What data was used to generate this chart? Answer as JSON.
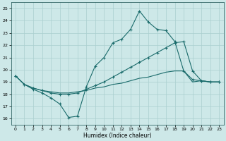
{
  "xlabel": "Humidex (Indice chaleur)",
  "xlim": [
    -0.5,
    23.5
  ],
  "ylim": [
    15.5,
    25.5
  ],
  "yticks": [
    16,
    17,
    18,
    19,
    20,
    21,
    22,
    23,
    24,
    25
  ],
  "xticks": [
    0,
    1,
    2,
    3,
    4,
    5,
    6,
    7,
    8,
    9,
    10,
    11,
    12,
    13,
    14,
    15,
    16,
    17,
    18,
    19,
    20,
    21,
    22,
    23
  ],
  "background_color": "#cde8e8",
  "grid_color": "#aacfcf",
  "line_color": "#1a6b6b",
  "line1_x": [
    0,
    1,
    2,
    3,
    4,
    5,
    6,
    7,
    8,
    9,
    10,
    11,
    12,
    13,
    14,
    15,
    16,
    17,
    18,
    19,
    20,
    21,
    22,
    23
  ],
  "line1_y": [
    19.5,
    18.8,
    18.4,
    18.1,
    17.7,
    17.2,
    16.1,
    16.2,
    18.6,
    20.3,
    21.0,
    22.2,
    22.5,
    23.3,
    24.8,
    23.9,
    23.3,
    23.2,
    22.3,
    19.9,
    19.2,
    19.1,
    19.0,
    19.0
  ],
  "line2_x": [
    0,
    1,
    2,
    3,
    4,
    5,
    6,
    7,
    8,
    9,
    10,
    11,
    12,
    13,
    14,
    15,
    16,
    17,
    18,
    19,
    20,
    21,
    22,
    23
  ],
  "line2_y": [
    19.5,
    18.8,
    18.5,
    18.3,
    18.1,
    18.0,
    18.0,
    18.1,
    18.4,
    18.7,
    19.0,
    19.4,
    19.8,
    20.2,
    20.6,
    21.0,
    21.4,
    21.8,
    22.2,
    22.3,
    19.9,
    19.1,
    19.0,
    19.0
  ],
  "line3_x": [
    0,
    1,
    2,
    3,
    4,
    5,
    6,
    7,
    8,
    9,
    10,
    11,
    12,
    13,
    14,
    15,
    16,
    17,
    18,
    19,
    20,
    21,
    22,
    23
  ],
  "line3_y": [
    19.5,
    18.8,
    18.5,
    18.3,
    18.2,
    18.1,
    18.1,
    18.2,
    18.3,
    18.5,
    18.6,
    18.8,
    18.9,
    19.1,
    19.3,
    19.4,
    19.6,
    19.8,
    19.9,
    19.9,
    19.0,
    19.1,
    19.0,
    19.0
  ]
}
